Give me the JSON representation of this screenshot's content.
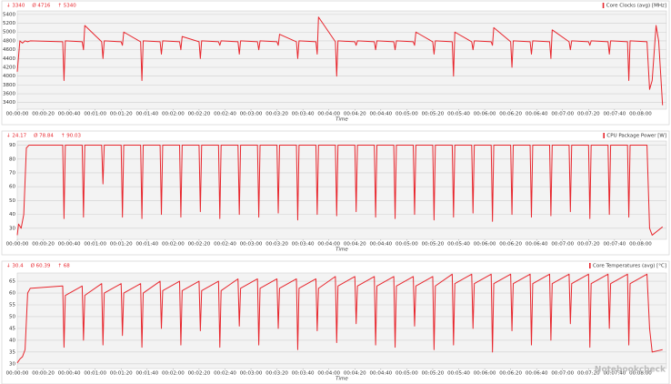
{
  "chart_data": [
    {
      "type": "line",
      "stats": [
        "↓ 3340",
        "Ø 4716",
        "↑ 5340"
      ],
      "legend": "upper right",
      "xlabel": "Time",
      "grid": true,
      "xlim": [
        0,
        500
      ],
      "ylim": [
        3250,
        5480
      ],
      "yticks": [
        3400,
        3600,
        3800,
        4000,
        4200,
        4400,
        4600,
        4800,
        5000,
        5200,
        5400
      ],
      "xticks": [
        {
          "value": 0,
          "label": "00:00:00"
        },
        {
          "value": 20,
          "label": "00:00:20"
        },
        {
          "value": 40,
          "label": "00:00:40"
        },
        {
          "value": 60,
          "label": "00:01:00"
        },
        {
          "value": 80,
          "label": "00:01:20"
        },
        {
          "value": 100,
          "label": "00:01:40"
        },
        {
          "value": 120,
          "label": "00:02:00"
        },
        {
          "value": 140,
          "label": "00:02:20"
        },
        {
          "value": 160,
          "label": "00:02:40"
        },
        {
          "value": 180,
          "label": "00:03:00"
        },
        {
          "value": 200,
          "label": "00:03:20"
        },
        {
          "value": 220,
          "label": "00:03:40"
        },
        {
          "value": 240,
          "label": "00:04:00"
        },
        {
          "value": 260,
          "label": "00:04:20"
        },
        {
          "value": 280,
          "label": "00:04:40"
        },
        {
          "value": 300,
          "label": "00:05:00"
        },
        {
          "value": 320,
          "label": "00:05:20"
        },
        {
          "value": 340,
          "label": "00:05:40"
        },
        {
          "value": 360,
          "label": "00:06:00"
        },
        {
          "value": 380,
          "label": "00:06:20"
        },
        {
          "value": 400,
          "label": "00:06:40"
        },
        {
          "value": 420,
          "label": "00:07:00"
        },
        {
          "value": 440,
          "label": "00:07:20"
        },
        {
          "value": 460,
          "label": "00:07:40"
        },
        {
          "value": 480,
          "label": "00:08:00"
        }
      ],
      "x": [
        0,
        2,
        4,
        6,
        8,
        10,
        35,
        36,
        37,
        50,
        51,
        52,
        65,
        66,
        67,
        80,
        81,
        82,
        95,
        96,
        97,
        110,
        111,
        112,
        125,
        126,
        127,
        140,
        141,
        142,
        155,
        156,
        157,
        170,
        171,
        172,
        185,
        186,
        187,
        200,
        201,
        202,
        215,
        216,
        217,
        230,
        231,
        232,
        245,
        246,
        247,
        260,
        261,
        262,
        275,
        276,
        277,
        290,
        291,
        292,
        305,
        306,
        307,
        320,
        321,
        322,
        335,
        336,
        337,
        350,
        351,
        352,
        365,
        366,
        367,
        380,
        381,
        382,
        395,
        396,
        397,
        410,
        411,
        412,
        425,
        426,
        427,
        440,
        441,
        442,
        455,
        456,
        457,
        470,
        471,
        472,
        485,
        487,
        489,
        492,
        494,
        497
      ],
      "series": [
        {
          "name": "Core Clocks (avg) [MHz]",
          "color": "#e8262d",
          "values": [
            4100,
            4800,
            4750,
            4800,
            4780,
            4800,
            4780,
            3900,
            4800,
            4780,
            4600,
            5150,
            4780,
            4400,
            4800,
            4780,
            4700,
            5000,
            4780,
            3900,
            4800,
            4780,
            4500,
            4800,
            4780,
            4600,
            4900,
            4780,
            4400,
            4800,
            4780,
            4700,
            4800,
            4780,
            4500,
            4800,
            4780,
            4600,
            4800,
            4780,
            4700,
            4950,
            4780,
            4400,
            4800,
            4780,
            4500,
            5340,
            4780,
            4000,
            4800,
            4780,
            4700,
            4800,
            4780,
            4600,
            4800,
            4780,
            4600,
            4800,
            4780,
            4700,
            5000,
            4780,
            4500,
            4800,
            4780,
            4000,
            5000,
            4780,
            4600,
            4800,
            4780,
            4700,
            5100,
            4780,
            4200,
            4800,
            4780,
            4500,
            4800,
            4780,
            4400,
            5050,
            4780,
            4600,
            4800,
            4780,
            4700,
            4800,
            4780,
            4500,
            4800,
            4780,
            3900,
            4800,
            4780,
            3700,
            3900,
            5150,
            4800,
            3340
          ]
        }
      ]
    },
    {
      "type": "line",
      "stats": [
        "↓ 24.17",
        "Ø 78.84",
        "↑ 90.03"
      ],
      "legend": "upper right",
      "xlabel": "Time",
      "grid": true,
      "xlim": [
        0,
        500
      ],
      "ylim": [
        22,
        93
      ],
      "yticks": [
        30,
        40,
        50,
        60,
        70,
        80,
        90
      ],
      "xticks": [
        {
          "value": 0,
          "label": "00:00:00"
        },
        {
          "value": 20,
          "label": "00:00:20"
        },
        {
          "value": 40,
          "label": "00:00:40"
        },
        {
          "value": 60,
          "label": "00:01:00"
        },
        {
          "value": 80,
          "label": "00:01:20"
        },
        {
          "value": 100,
          "label": "00:01:40"
        },
        {
          "value": 120,
          "label": "00:02:00"
        },
        {
          "value": 140,
          "label": "00:02:20"
        },
        {
          "value": 160,
          "label": "00:02:40"
        },
        {
          "value": 180,
          "label": "00:03:00"
        },
        {
          "value": 200,
          "label": "00:03:20"
        },
        {
          "value": 220,
          "label": "00:03:40"
        },
        {
          "value": 240,
          "label": "00:04:00"
        },
        {
          "value": 260,
          "label": "00:04:20"
        },
        {
          "value": 280,
          "label": "00:04:40"
        },
        {
          "value": 300,
          "label": "00:05:00"
        },
        {
          "value": 320,
          "label": "00:05:20"
        },
        {
          "value": 340,
          "label": "00:05:40"
        },
        {
          "value": 360,
          "label": "00:06:00"
        },
        {
          "value": 380,
          "label": "00:06:20"
        },
        {
          "value": 400,
          "label": "00:06:40"
        },
        {
          "value": 420,
          "label": "00:07:00"
        },
        {
          "value": 440,
          "label": "00:07:20"
        },
        {
          "value": 460,
          "label": "00:07:40"
        },
        {
          "value": 480,
          "label": "00:08:00"
        }
      ],
      "x": [
        0,
        1,
        3,
        5,
        7,
        9,
        35,
        36,
        37,
        50,
        51,
        52,
        65,
        66,
        67,
        80,
        81,
        82,
        95,
        96,
        97,
        110,
        111,
        112,
        125,
        126,
        127,
        140,
        141,
        142,
        155,
        156,
        157,
        170,
        171,
        172,
        185,
        186,
        187,
        200,
        201,
        202,
        215,
        216,
        217,
        230,
        231,
        232,
        245,
        246,
        247,
        260,
        261,
        262,
        275,
        276,
        277,
        290,
        291,
        292,
        305,
        306,
        307,
        320,
        321,
        322,
        335,
        336,
        337,
        350,
        351,
        352,
        365,
        366,
        367,
        380,
        381,
        382,
        395,
        396,
        397,
        410,
        411,
        412,
        425,
        426,
        427,
        440,
        441,
        442,
        455,
        456,
        457,
        470,
        471,
        472,
        485,
        487,
        489,
        493,
        497
      ],
      "series": [
        {
          "name": "CPU Package Power [W]",
          "color": "#e8262d",
          "values": [
            25,
            33,
            30,
            40,
            88,
            90,
            90,
            37,
            90,
            90,
            38,
            90,
            90,
            62,
            90,
            90,
            38,
            90,
            90,
            37,
            90,
            90,
            40,
            90,
            90,
            38,
            90,
            90,
            42,
            90,
            90,
            37,
            90,
            90,
            40,
            90,
            90,
            38,
            90,
            90,
            41,
            90,
            90,
            36,
            90,
            90,
            40,
            90,
            90,
            39,
            90,
            90,
            42,
            90,
            90,
            38,
            90,
            90,
            37,
            90,
            90,
            40,
            90,
            90,
            36,
            90,
            90,
            38,
            90,
            90,
            41,
            90,
            90,
            35,
            90,
            90,
            40,
            90,
            90,
            38,
            90,
            90,
            39,
            90,
            90,
            42,
            90,
            90,
            37,
            90,
            90,
            40,
            90,
            90,
            38,
            90,
            90,
            30,
            25,
            28,
            31
          ]
        }
      ]
    },
    {
      "type": "line",
      "stats": [
        "↓ 30.4",
        "Ø 60.39",
        "↑ 68"
      ],
      "legend": "upper right",
      "xlabel": "Time",
      "grid": true,
      "xlim": [
        0,
        500
      ],
      "ylim": [
        28,
        68.5
      ],
      "yticks": [
        30,
        35,
        40,
        45,
        50,
        55,
        60,
        65
      ],
      "xticks": [
        {
          "value": 0,
          "label": "00:00:00"
        },
        {
          "value": 20,
          "label": "00:00:20"
        },
        {
          "value": 40,
          "label": "00:00:40"
        },
        {
          "value": 60,
          "label": "00:01:00"
        },
        {
          "value": 80,
          "label": "00:01:20"
        },
        {
          "value": 100,
          "label": "00:01:40"
        },
        {
          "value": 120,
          "label": "00:02:00"
        },
        {
          "value": 140,
          "label": "00:02:20"
        },
        {
          "value": 160,
          "label": "00:02:40"
        },
        {
          "value": 180,
          "label": "00:03:00"
        },
        {
          "value": 200,
          "label": "00:03:20"
        },
        {
          "value": 220,
          "label": "00:03:40"
        },
        {
          "value": 240,
          "label": "00:04:00"
        },
        {
          "value": 260,
          "label": "00:04:20"
        },
        {
          "value": 280,
          "label": "00:04:40"
        },
        {
          "value": 300,
          "label": "00:05:00"
        },
        {
          "value": 320,
          "label": "00:05:20"
        },
        {
          "value": 340,
          "label": "00:05:40"
        },
        {
          "value": 360,
          "label": "00:06:00"
        },
        {
          "value": 380,
          "label": "00:06:20"
        },
        {
          "value": 400,
          "label": "00:06:40"
        },
        {
          "value": 420,
          "label": "00:07:00"
        },
        {
          "value": 440,
          "label": "00:07:20"
        },
        {
          "value": 460,
          "label": "00:07:40"
        },
        {
          "value": 480,
          "label": "00:08:00"
        }
      ],
      "x": [
        0,
        2,
        4,
        6,
        8,
        10,
        35,
        36,
        37,
        50,
        51,
        52,
        65,
        66,
        67,
        80,
        81,
        82,
        95,
        96,
        97,
        110,
        111,
        112,
        125,
        126,
        127,
        140,
        141,
        142,
        155,
        156,
        157,
        170,
        171,
        172,
        185,
        186,
        187,
        200,
        201,
        202,
        215,
        216,
        217,
        230,
        231,
        232,
        245,
        246,
        247,
        260,
        261,
        262,
        275,
        276,
        277,
        290,
        291,
        292,
        305,
        306,
        307,
        320,
        321,
        322,
        335,
        336,
        337,
        350,
        351,
        352,
        365,
        366,
        367,
        380,
        381,
        382,
        395,
        396,
        397,
        410,
        411,
        412,
        425,
        426,
        427,
        440,
        441,
        442,
        455,
        456,
        457,
        470,
        471,
        472,
        485,
        487,
        489,
        493,
        497
      ],
      "series": [
        {
          "name": "Core Temperatures (avg) [°C]",
          "color": "#e8262d",
          "values": [
            30.4,
            32,
            33,
            36,
            60,
            62,
            63,
            37,
            59,
            63,
            40,
            59,
            64,
            38,
            60,
            64,
            42,
            60,
            64,
            37,
            60,
            65,
            45,
            61,
            65,
            38,
            61,
            65,
            44,
            61,
            65,
            37,
            61,
            66,
            46,
            62,
            66,
            38,
            62,
            66,
            45,
            62,
            66,
            36,
            62,
            66,
            44,
            62,
            67,
            39,
            63,
            67,
            47,
            63,
            67,
            38,
            63,
            67,
            37,
            63,
            67,
            46,
            63,
            67,
            36,
            63,
            68,
            38,
            64,
            68,
            45,
            64,
            68,
            35,
            64,
            68,
            44,
            64,
            68,
            38,
            64,
            68,
            40,
            64,
            68,
            47,
            64,
            68,
            37,
            64,
            68,
            45,
            64,
            68,
            38,
            64,
            68,
            45,
            35,
            35.5,
            36
          ]
        }
      ]
    }
  ],
  "watermark": "Notebookcheck"
}
